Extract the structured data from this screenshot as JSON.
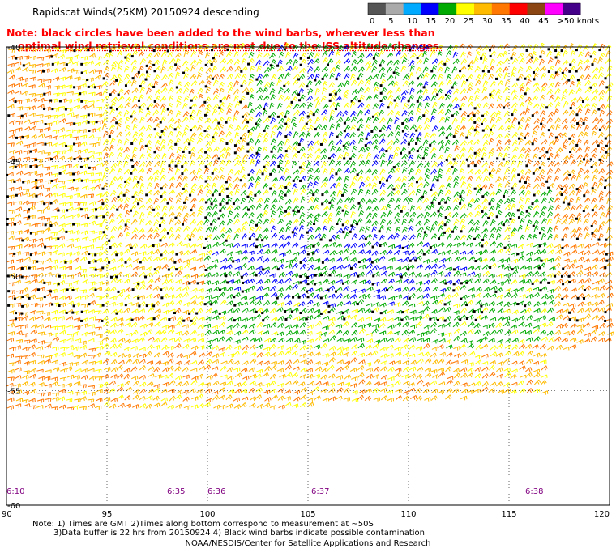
{
  "title": "Rapidscat Winds(25KM) 20150924 descending",
  "note_line1": "Note: black circles have been added to the wind barbs, wherever less than",
  "note_line2": "optimal wind retrieval conditions are met due to the ISS altitude changes.",
  "color_scale": {
    "labels": [
      "0",
      "5",
      "10",
      "15",
      "20",
      "25",
      "30",
      "35",
      "40",
      "45",
      ">50 knots"
    ],
    "colors": [
      "#555555",
      "#aaaaaa",
      "#00aaff",
      "#0000ff",
      "#00aa00",
      "#ffff00",
      "#ffbb00",
      "#ff7700",
      "#ff0000",
      "#8b4513",
      "#ff00ff",
      "#440088"
    ]
  },
  "map": {
    "lon_ticks": [
      "90",
      "95",
      "100",
      "105",
      "110",
      "115",
      "120"
    ],
    "lat_ticks": [
      "-40",
      "-45",
      "-50",
      "-55",
      "-60"
    ],
    "time_labels": [
      "6:10",
      "6:35",
      "6:36",
      "6:37",
      "6:38"
    ]
  },
  "footer": {
    "line1": "Note: 1) Times are GMT 2)Times along bottom correspond to measurement at ~50S",
    "line2": "3)Data buffer is 22 hrs from 20150924 4) Black wind barbs indicate possible contamination",
    "line3": "NOAA/NESDIS/Center for Satellite Applications and Research"
  }
}
